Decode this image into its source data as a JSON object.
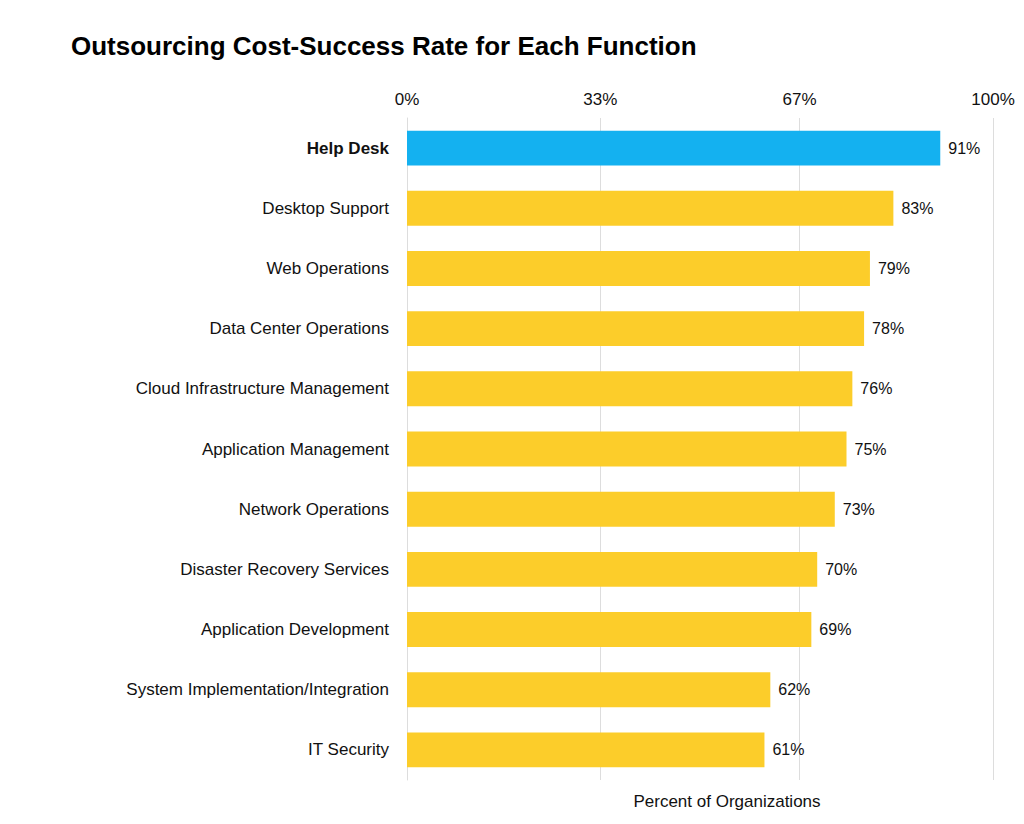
{
  "chart_data": {
    "type": "bar",
    "title": "Outsourcing Cost-Success Rate for Each Function",
    "xlabel": "Percent of Organizations",
    "orientation": "horizontal",
    "categories": [
      "Help Desk",
      "Desktop Support",
      "Web Operations",
      "Data Center Operations",
      "Cloud Infrastructure Management",
      "Application Management",
      "Network Operations",
      "Disaster Recovery Services",
      "Application Development",
      "System Implementation/Integration",
      "IT Security"
    ],
    "values": [
      91,
      83,
      79,
      78,
      76,
      75,
      73,
      70,
      69,
      62,
      61
    ],
    "value_labels": [
      "91%",
      "83%",
      "79%",
      "78%",
      "76%",
      "75%",
      "73%",
      "70%",
      "69%",
      "62%",
      "61%"
    ],
    "colors": [
      "#14b1f0",
      "#fccd2a",
      "#fccd2a",
      "#fccd2a",
      "#fccd2a",
      "#fccd2a",
      "#fccd2a",
      "#fccd2a",
      "#fccd2a",
      "#fccd2a",
      "#fccd2a"
    ],
    "xlim": [
      0,
      100
    ],
    "xticks": [
      {
        "value": 0,
        "label": "0%"
      },
      {
        "value": 33,
        "label": "33%"
      },
      {
        "value": 67,
        "label": "67%"
      },
      {
        "value": 100,
        "label": "100%"
      }
    ],
    "grid": true,
    "data_labels": true
  }
}
